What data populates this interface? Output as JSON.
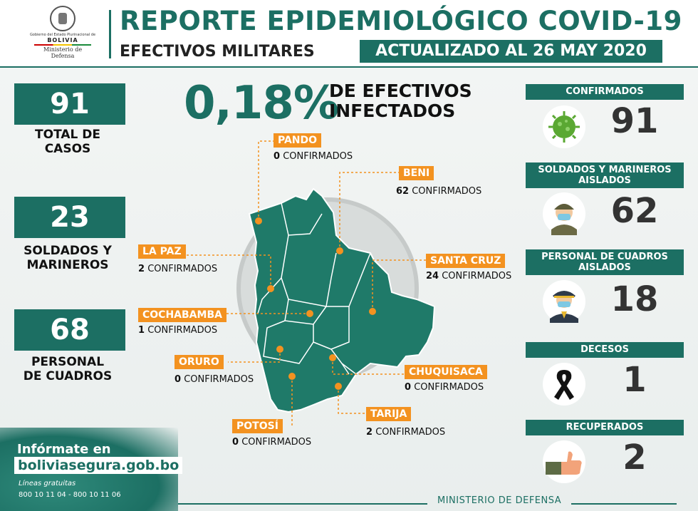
{
  "header": {
    "logo_line1": "Gobierno del Estado Plurinacional de",
    "logo_line2": "BOLIVIA",
    "logo_line3": "Ministerio de",
    "logo_line4": "Defensa",
    "title": "REPORTE EPIDEMIOLÓGICO COVID-19",
    "subtitle": "EFECTIVOS MILITARES",
    "updated": "ACTUALIZADO AL  26 MAY 2020"
  },
  "left": {
    "total_value": "91",
    "total_label_1": "TOTAL DE",
    "total_label_2": "CASOS",
    "soldiers_value": "23",
    "soldiers_label_1": "SOLDADOS Y",
    "soldiers_label_2": "MARINEROS",
    "staff_value": "68",
    "staff_label_1": "PERSONAL",
    "staff_label_2": "DE CUADROS"
  },
  "headline": {
    "percent": "0,18%",
    "label_1": "DE EFECTIVOS",
    "label_2": "INFECTADOS"
  },
  "departments": [
    {
      "name": "PANDO",
      "count": "0",
      "suffix": "CONFIRMADOS"
    },
    {
      "name": "BENI",
      "count": "62",
      "suffix": "CONFIRMADOS"
    },
    {
      "name": "LA PAZ",
      "count": "2",
      "suffix": "CONFIRMADOS"
    },
    {
      "name": "SANTA CRUZ",
      "count": "24",
      "suffix": "CONFIRMADOS"
    },
    {
      "name": "COCHABAMBA",
      "count": "1",
      "suffix": "CONFIRMADOS"
    },
    {
      "name": "ORURO",
      "count": "0",
      "suffix": "CONFIRMADOS"
    },
    {
      "name": "CHUQUISACA",
      "count": "0",
      "suffix": "CONFIRMADOS"
    },
    {
      "name": "TARIJA",
      "count": "2",
      "suffix": "CONFIRMADOS"
    },
    {
      "name": "POTOSÍ",
      "count": "0",
      "suffix": "CONFIRMADOS"
    }
  ],
  "right": [
    {
      "label": "CONFIRMADOS",
      "value": "91",
      "icon": "virus-icon"
    },
    {
      "label": "SOLDADOS Y MARINEROS AISLADOS",
      "value": "62",
      "icon": "soldier-mask-icon"
    },
    {
      "label": "PERSONAL DE CUADROS AISLADOS",
      "value": "18",
      "icon": "officer-mask-icon"
    },
    {
      "label": "DECESOS",
      "value": "1",
      "icon": "mourning-ribbon-icon"
    },
    {
      "label": "RECUPERADOS",
      "value": "2",
      "icon": "thumbs-up-icon"
    }
  ],
  "footer": {
    "info_label": "Infórmate en",
    "info_url": "boliviasegura.gob.bo",
    "lines_label": "Líneas gratuitas",
    "phones": "800 10 11 04 - 800 10 11 06",
    "ministry": "MINISTERIO DE DEFENSA"
  },
  "colors": {
    "primary": "#1c6f63",
    "accent": "#f39220",
    "map": "#1f7a69"
  }
}
